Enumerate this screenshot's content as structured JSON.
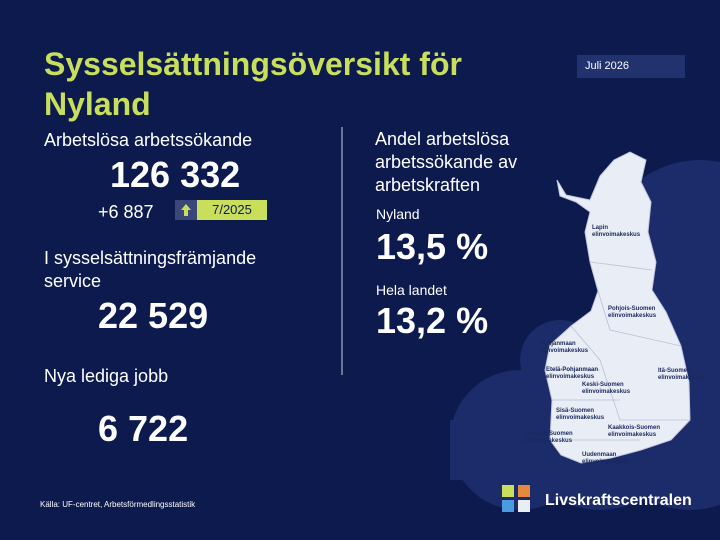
{
  "header": {
    "title": "Sysselsättningsöversikt för Nyland",
    "date": "Juli 2026"
  },
  "left": {
    "unemployed": {
      "label": "Arbetslösa arbetssökande",
      "value": "126 332",
      "change": "+6 887",
      "period": "7/2025"
    },
    "services": {
      "label": "I sysselsättningsfrämjande service",
      "value": "22 529"
    },
    "vacancies": {
      "label": "Nya lediga jobb",
      "value": "6 722"
    }
  },
  "right": {
    "title": "Andel arbetslösa arbetssökande av arbetskraften",
    "items": [
      {
        "label": "Nyland",
        "value": "13,5 %"
      },
      {
        "label": "Hela landet",
        "value": "13,2 %"
      }
    ]
  },
  "map": {
    "regions": [
      {
        "lines": [
          "Lapin",
          "elinvoimakeskus"
        ]
      },
      {
        "lines": [
          "Pohjois-Suomen",
          "elinvoimakeskus"
        ]
      },
      {
        "lines": [
          "Pohjanmaan",
          "elinvoimakeskus"
        ]
      },
      {
        "lines": [
          "Etelä-Pohjanmaan",
          "elinvoimakeskus"
        ]
      },
      {
        "lines": [
          "Itä-Suomen",
          "elinvoimakeskus"
        ]
      },
      {
        "lines": [
          "Keski-Suomen",
          "elinvoimakeskus"
        ]
      },
      {
        "lines": [
          "Sisä-Suomen",
          "elinvoimakeskus"
        ]
      },
      {
        "lines": [
          "Kaakkois-Suomen",
          "elinvoimakeskus"
        ]
      },
      {
        "lines": [
          "Lounais-Suomen",
          "elinvoimakeskus"
        ]
      },
      {
        "lines": [
          "Uudenmaan",
          "elinvoimakeskus"
        ]
      }
    ]
  },
  "footer": {
    "source": "Källa: UF-centret, Arbetsförmedlingsstatistik",
    "logo": "Livskraftscentralen"
  }
}
